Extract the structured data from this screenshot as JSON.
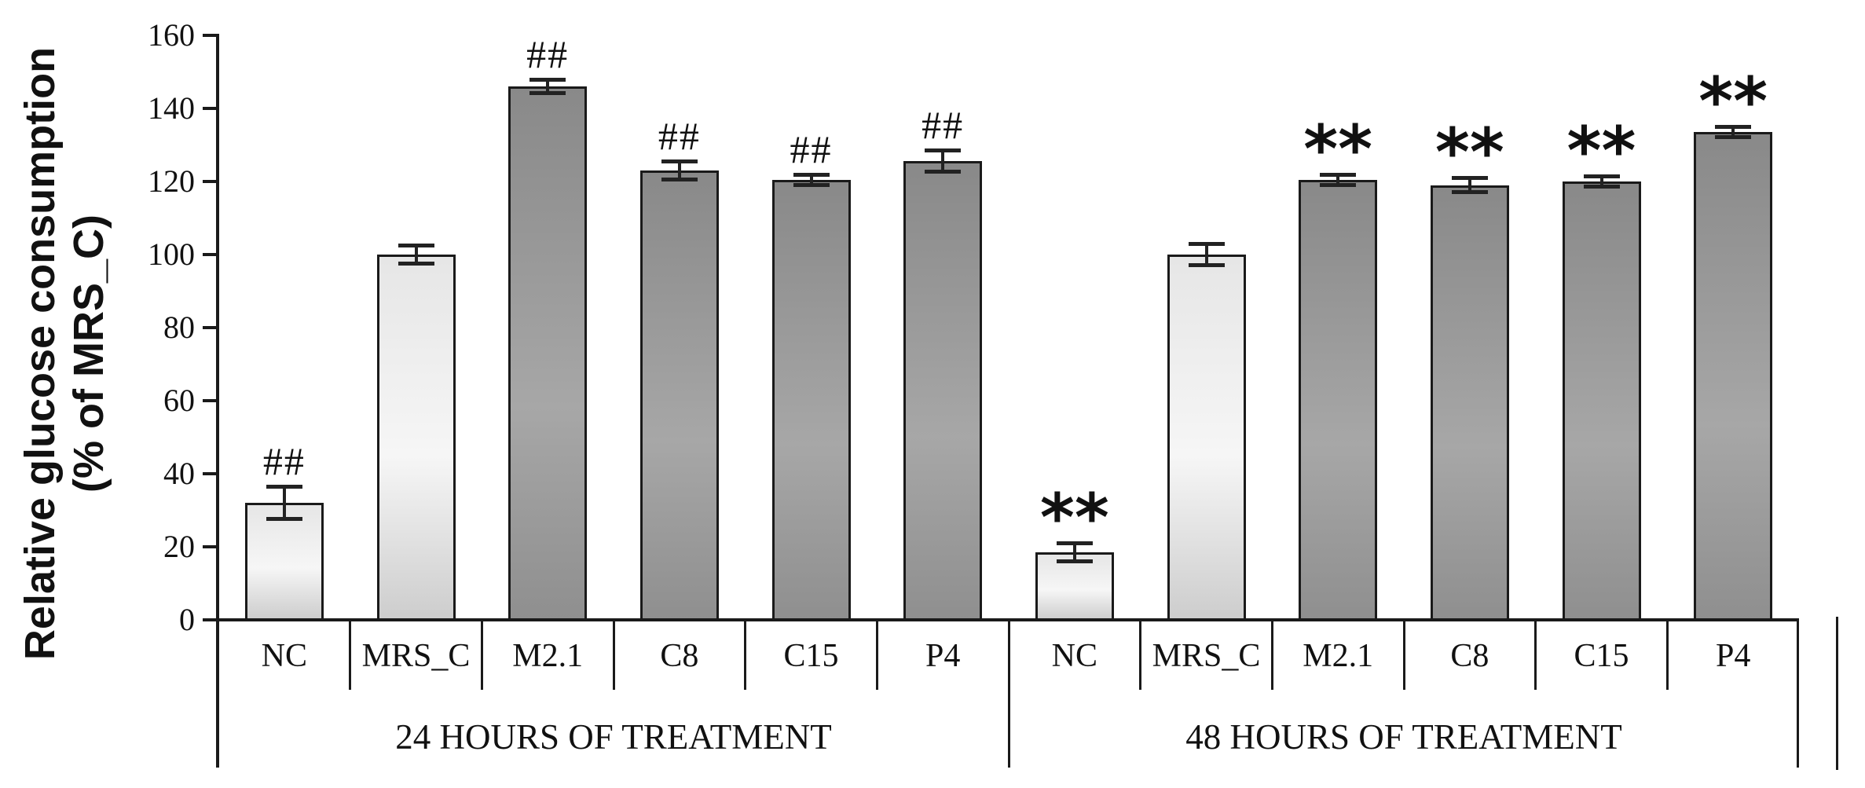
{
  "figure": {
    "ylabel_line1": "Relative glucose consumption",
    "ylabel_line2": "(% of MRS_C)"
  },
  "chart_data": {
    "type": "bar",
    "title": "",
    "xlabel": "",
    "ylabel": "Relative glucose consumption (% of MRS_C)",
    "ylim": [
      0,
      160
    ],
    "yticks": [
      0,
      20,
      40,
      60,
      80,
      100,
      120,
      140,
      160
    ],
    "grid": false,
    "legend": false,
    "groups": [
      {
        "label": "24 HOURS OF TREATMENT",
        "categories": [
          "NC",
          "MRS_C",
          "M2.1",
          "C8",
          "C15",
          "P4"
        ],
        "values": [
          32,
          100,
          146,
          123,
          120.5,
          125.5
        ],
        "errors": [
          4.5,
          2.5,
          2,
          2.5,
          1.5,
          3
        ],
        "significance": [
          "##",
          "",
          "##",
          "##",
          "##",
          "##"
        ],
        "fills": [
          "light",
          "light",
          "dark",
          "dark",
          "dark",
          "dark"
        ]
      },
      {
        "label": "48 HOURS OF TREATMENT",
        "categories": [
          "NC",
          "MRS_C",
          "M2.1",
          "C8",
          "C15",
          "P4"
        ],
        "values": [
          18.5,
          100,
          120.5,
          119,
          120,
          133.5
        ],
        "errors": [
          2.5,
          3,
          1.5,
          2,
          1.5,
          1.5
        ],
        "significance": [
          "**",
          "",
          "**",
          "**",
          "**",
          "**"
        ],
        "fills": [
          "light",
          "light",
          "dark",
          "dark",
          "dark",
          "dark"
        ]
      }
    ],
    "colors": {
      "light_bar_top": "#e6e6e6",
      "light_bar_mid": "#f6f6f6",
      "light_bar_bottom": "#cdcdcd",
      "dark_bar_top": "#898989",
      "dark_bar_mid": "#a7a7a7",
      "dark_bar_bottom": "#8f8f8f",
      "outline": "#1a1a1a",
      "error_bar": "#222222"
    }
  }
}
